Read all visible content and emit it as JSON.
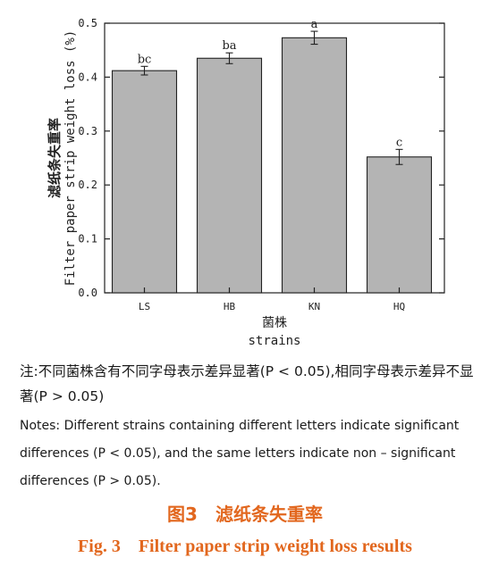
{
  "chart_data": {
    "type": "bar",
    "categories": [
      "LS",
      "HB",
      "KN",
      "HQ"
    ],
    "values": [
      0.412,
      0.435,
      0.473,
      0.252
    ],
    "errors": [
      0.008,
      0.01,
      0.012,
      0.014
    ],
    "significance_letters": [
      "bc",
      "ba",
      "a",
      "c"
    ],
    "ylim": [
      0,
      0.5
    ],
    "yticks": [
      "0.0",
      "0.1",
      "0.2",
      "0.3",
      "0.4",
      "0.5"
    ],
    "ylabel_cn": "滤纸条失重率",
    "ylabel_en": "Filter paper strip weight loss (%)",
    "xlabel_cn": "菌株",
    "xlabel_en": "strains",
    "bar_color": "#b4b4b4",
    "grid": false
  },
  "note": {
    "cn": "注:不同菌株含有不同字母表示差异显著(P < 0.05),相同字母表示差异不显著(P > 0.05)",
    "en": "Notes: Different strains containing different letters indicate significant differences (P < 0.05), and the same letters indicate non – significant differences (P > 0.05)."
  },
  "caption": {
    "cn": "图3　滤纸条失重率",
    "en": "Fig. 3　Filter paper strip weight loss results"
  }
}
